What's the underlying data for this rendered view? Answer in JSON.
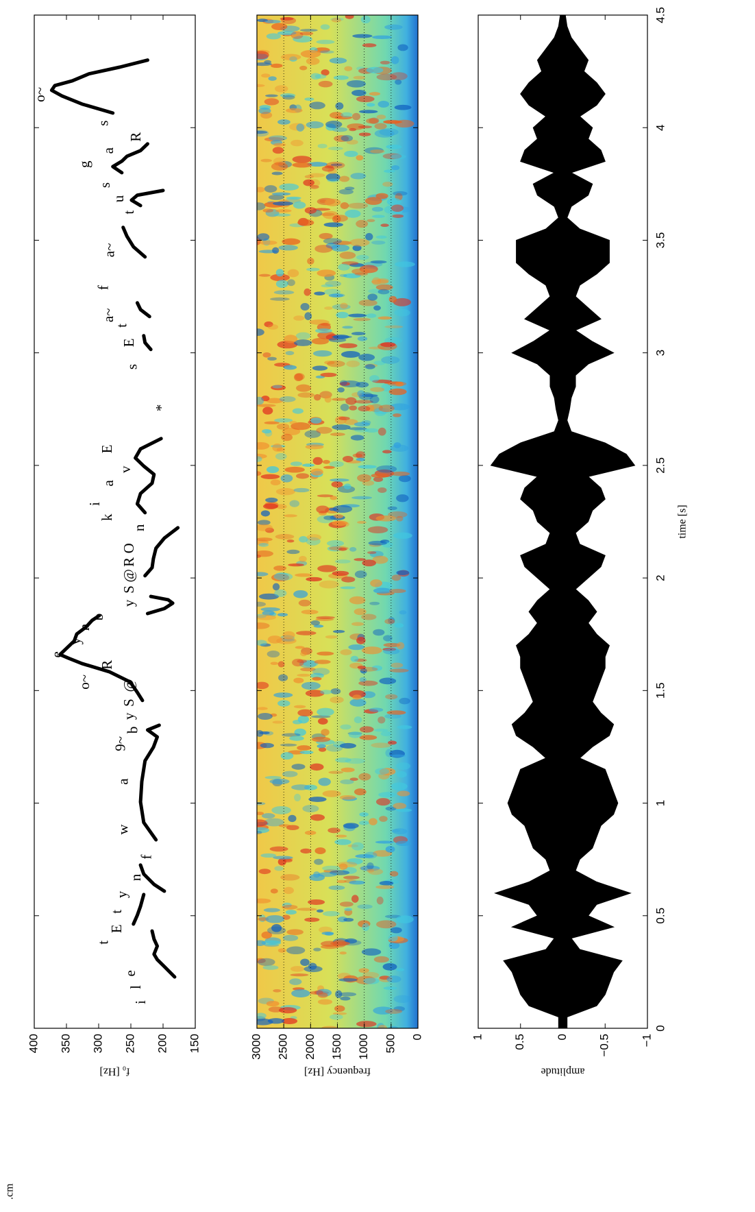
{
  "fragment": ".cm",
  "chart_data": [
    {
      "type": "line",
      "ylabel": "f₀ [Hz]",
      "color": "#000000",
      "xlim": [
        0,
        4.5
      ],
      "xticks": [
        0,
        0.5,
        1,
        1.5,
        2,
        2.5,
        3,
        3.5,
        4,
        4.5
      ],
      "ylim": [
        150,
        400
      ],
      "yticks": [
        150,
        200,
        250,
        300,
        350,
        400
      ],
      "contours": [
        {
          "x": [
            0.228,
            0.274,
            0.305,
            0.329,
            0.365,
            0.396,
            0.432
          ],
          "y": [
            182,
            198,
            209,
            214,
            209,
            214,
            217
          ]
        },
        {
          "x": [
            0.463,
            0.502,
            0.542,
            0.594
          ],
          "y": [
            246,
            240,
            235,
            230
          ]
        },
        {
          "x": [
            0.609,
            0.639,
            0.685,
            0.725
          ],
          "y": [
            198,
            214,
            230,
            235
          ]
        },
        {
          "x": [
            0.837,
            0.914,
            1.005,
            1.096,
            1.188,
            1.248,
            1.294,
            1.325,
            1.346
          ],
          "y": [
            211,
            230,
            235,
            233,
            228,
            215,
            209,
            224,
            206
          ]
        },
        {
          "x": [
            1.456,
            1.492,
            1.538,
            1.583,
            1.62,
            1.644,
            1.66,
            1.69,
            1.72,
            1.751,
            1.781,
            1.812,
            1.833
          ],
          "y": [
            232,
            240,
            251,
            283,
            326,
            347,
            360,
            349,
            338,
            334,
            320,
            310,
            299
          ]
        },
        {
          "x": [
            1.842,
            1.864,
            1.888,
            1.903,
            1.918
          ],
          "y": [
            224,
            198,
            185,
            192,
            219
          ]
        },
        {
          "x": [
            2.01,
            2.046,
            2.086,
            2.132,
            2.177,
            2.223
          ],
          "y": [
            228,
            217,
            215,
            211,
            198,
            177
          ]
        },
        {
          "x": [
            2.29,
            2.329,
            2.375,
            2.421,
            2.46,
            2.497,
            2.533,
            2.573,
            2.619
          ],
          "y": [
            228,
            240,
            235,
            217,
            214,
            230,
            243,
            235,
            203
          ]
        },
        {
          "x": [
            3.015,
            3.045,
            3.076
          ],
          "y": [
            219,
            228,
            230
          ]
        },
        {
          "x": [
            3.161,
            3.192,
            3.222
          ],
          "y": [
            221,
            235,
            240
          ]
        },
        {
          "x": [
            3.426,
            3.471,
            3.517,
            3.557
          ],
          "y": [
            228,
            246,
            256,
            262
          ]
        },
        {
          "x": [
            3.654,
            3.678,
            3.7,
            3.721
          ],
          "y": [
            235,
            249,
            240,
            200
          ]
        },
        {
          "x": [
            3.8,
            3.827,
            3.851,
            3.873,
            3.898,
            3.928
          ],
          "y": [
            264,
            278,
            264,
            256,
            235,
            224
          ]
        },
        {
          "x": [
            4.065,
            4.105,
            4.141,
            4.166,
            4.187,
            4.208,
            4.239,
            4.269,
            4.3
          ],
          "y": [
            278,
            326,
            357,
            373,
            368,
            341,
            315,
            267,
            224
          ]
        }
      ],
      "annotations": [
        {
          "text": "i",
          "x": 0.116,
          "y": 233
        },
        {
          "text": "l",
          "x": 0.183,
          "y": 240
        },
        {
          "text": "e",
          "x": 0.244,
          "y": 249
        },
        {
          "text": "t",
          "x": 0.381,
          "y": 291
        },
        {
          "text": "E",
          "x": 0.442,
          "y": 270
        },
        {
          "text": "t",
          "x": 0.518,
          "y": 270
        },
        {
          "text": "y",
          "x": 0.594,
          "y": 262
        },
        {
          "text": "n",
          "x": 0.67,
          "y": 240
        },
        {
          "text": "f",
          "x": 0.761,
          "y": 224
        },
        {
          "text": "w",
          "x": 0.883,
          "y": 260
        },
        {
          "text": "a",
          "x": 1.096,
          "y": 260
        },
        {
          "text": "9~",
          "x": 1.264,
          "y": 264
        },
        {
          "text": "b",
          "x": 1.325,
          "y": 245
        },
        {
          "text": "y",
          "x": 1.386,
          "y": 251
        },
        {
          "text": "S",
          "x": 1.446,
          "y": 251
        },
        {
          "text": "@",
          "x": 1.523,
          "y": 251
        },
        {
          "text": "o~",
          "x": 1.538,
          "y": 320
        },
        {
          "text": "R",
          "x": 1.614,
          "y": 285
        },
        {
          "text": "e",
          "x": 1.66,
          "y": 363
        },
        {
          "text": "y",
          "x": 1.72,
          "y": 334
        },
        {
          "text": "n",
          "x": 1.781,
          "y": 320
        },
        {
          "text": "b",
          "x": 1.827,
          "y": 299
        },
        {
          "text": "y",
          "x": 1.888,
          "y": 251
        },
        {
          "text": "S",
          "x": 1.949,
          "y": 251
        },
        {
          "text": "@",
          "x": 2.01,
          "y": 251
        },
        {
          "text": "R",
          "x": 2.071,
          "y": 251
        },
        {
          "text": "O",
          "x": 2.132,
          "y": 251
        },
        {
          "text": "n",
          "x": 2.223,
          "y": 235
        },
        {
          "text": "k",
          "x": 2.269,
          "y": 285
        },
        {
          "text": "i",
          "x": 2.329,
          "y": 304
        },
        {
          "text": "a",
          "x": 2.421,
          "y": 283
        },
        {
          "text": "v",
          "x": 2.482,
          "y": 256
        },
        {
          "text": "E",
          "x": 2.573,
          "y": 285
        },
        {
          "text": "*",
          "x": 2.756,
          "y": 201
        },
        {
          "text": "s",
          "x": 2.938,
          "y": 246
        },
        {
          "text": "E",
          "x": 3.045,
          "y": 251
        },
        {
          "text": "t",
          "x": 3.121,
          "y": 262
        },
        {
          "text": "a~",
          "x": 3.167,
          "y": 283
        },
        {
          "text": "f",
          "x": 3.289,
          "y": 291
        },
        {
          "text": "a~",
          "x": 3.456,
          "y": 281
        },
        {
          "text": "t",
          "x": 3.624,
          "y": 251
        },
        {
          "text": "u",
          "x": 3.684,
          "y": 267
        },
        {
          "text": "s",
          "x": 3.745,
          "y": 288
        },
        {
          "text": "g",
          "x": 3.837,
          "y": 320
        },
        {
          "text": "a",
          "x": 3.898,
          "y": 283
        },
        {
          "text": "R",
          "x": 3.959,
          "y": 240
        },
        {
          "text": "s",
          "x": 4.02,
          "y": 291
        },
        {
          "text": "o~",
          "x": 4.147,
          "y": 389
        }
      ]
    },
    {
      "type": "spectrogram",
      "ylabel": "frequency [Hz]",
      "grid": true,
      "xlim": [
        0,
        4.5
      ],
      "xticks": [
        0,
        0.5,
        1,
        1.5,
        2,
        2.5,
        3,
        3.5,
        4,
        4.5
      ],
      "ylim": [
        0,
        3000
      ],
      "yticks": [
        0,
        500,
        1000,
        1500,
        2000,
        2500,
        3000
      ]
    },
    {
      "type": "area",
      "xlabel": "time [s]",
      "ylabel": "amplitude",
      "color": "#000000",
      "xlim": [
        0,
        4.5
      ],
      "xticks": [
        0,
        0.5,
        1,
        1.5,
        2,
        2.5,
        3,
        3.5,
        4,
        4.5
      ],
      "ylim": [
        -1,
        1
      ],
      "yticks": [
        {
          "value": -1,
          "label": "−1"
        },
        {
          "value": -0.5,
          "label": "−0.5"
        },
        0,
        0.5,
        1
      ],
      "x": [
        0,
        0.05,
        0.1,
        0.15,
        0.2,
        0.25,
        0.3,
        0.35,
        0.4,
        0.45,
        0.5,
        0.55,
        0.6,
        0.65,
        0.7,
        0.75,
        0.8,
        0.85,
        0.9,
        0.95,
        1,
        1.05,
        1.1,
        1.15,
        1.2,
        1.25,
        1.3,
        1.35,
        1.4,
        1.45,
        1.5,
        1.55,
        1.6,
        1.65,
        1.7,
        1.75,
        1.8,
        1.85,
        1.9,
        1.95,
        2,
        2.05,
        2.1,
        2.15,
        2.2,
        2.25,
        2.3,
        2.35,
        2.4,
        2.45,
        2.5,
        2.55,
        2.6,
        2.65,
        2.7,
        2.75,
        2.8,
        2.85,
        2.9,
        2.95,
        3,
        3.05,
        3.1,
        3.15,
        3.2,
        3.25,
        3.3,
        3.35,
        3.4,
        3.45,
        3.5,
        3.55,
        3.6,
        3.65,
        3.7,
        3.75,
        3.8,
        3.85,
        3.9,
        3.95,
        4,
        4.05,
        4.1,
        4.15,
        4.2,
        4.25,
        4.3,
        4.35,
        4.4,
        4.45,
        4.5
      ],
      "values": [
        0.05,
        0.05,
        0.4,
        0.5,
        0.55,
        0.6,
        0.7,
        0.2,
        0.1,
        0.6,
        0.3,
        0.4,
        0.8,
        0.4,
        0.15,
        0.2,
        0.35,
        0.4,
        0.45,
        0.6,
        0.65,
        0.6,
        0.55,
        0.5,
        0.2,
        0.35,
        0.55,
        0.6,
        0.45,
        0.35,
        0.4,
        0.45,
        0.5,
        0.5,
        0.55,
        0.4,
        0.3,
        0.4,
        0.3,
        0.15,
        0.3,
        0.45,
        0.5,
        0.2,
        0.15,
        0.3,
        0.35,
        0.5,
        0.45,
        0.3,
        0.85,
        0.75,
        0.5,
        0.1,
        0.05,
        0.08,
        0.1,
        0.15,
        0.15,
        0.3,
        0.6,
        0.35,
        0.15,
        0.45,
        0.3,
        0.15,
        0.2,
        0.4,
        0.55,
        0.55,
        0.55,
        0.2,
        0.05,
        0.1,
        0.3,
        0.35,
        0.1,
        0.5,
        0.45,
        0.3,
        0.35,
        0.2,
        0.4,
        0.5,
        0.4,
        0.25,
        0.3,
        0.2,
        0.1,
        0.05,
        0.03
      ]
    }
  ]
}
